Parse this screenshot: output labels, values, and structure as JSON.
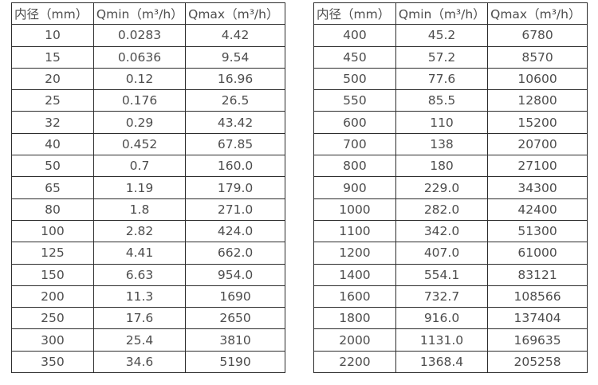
{
  "page": {
    "background_color": "#ffffff",
    "border_color": "#2d2d2d",
    "text_color": "#4d4d4d"
  },
  "tables": [
    {
      "name": "flow-table-small-diameters",
      "headers": [
        "内径（mm）",
        "Qmin（m³/h）",
        "Qmax（m³/h）"
      ],
      "rows": [
        [
          "10",
          "0.0283",
          "4.42"
        ],
        [
          "15",
          "0.0636",
          "9.54"
        ],
        [
          "20",
          "0.12",
          "16.96"
        ],
        [
          "25",
          "0.176",
          "26.5"
        ],
        [
          "32",
          "0.29",
          "43.42"
        ],
        [
          "40",
          "0.452",
          "67.85"
        ],
        [
          "50",
          "0.7",
          "160.0"
        ],
        [
          "65",
          "1.19",
          "179.0"
        ],
        [
          "80",
          "1.8",
          "271.0"
        ],
        [
          "100",
          "2.82",
          "424.0"
        ],
        [
          "125",
          "4.41",
          "662.0"
        ],
        [
          "150",
          "6.63",
          "954.0"
        ],
        [
          "200",
          "11.3",
          "1690"
        ],
        [
          "250",
          "17.6",
          "2650"
        ],
        [
          "300",
          "25.4",
          "3810"
        ],
        [
          "350",
          "34.6",
          "5190"
        ]
      ]
    },
    {
      "name": "flow-table-large-diameters",
      "headers": [
        "内径（mm）",
        "Qmin（m³/h）",
        "Qmax（m³/h）"
      ],
      "rows": [
        [
          "400",
          "45.2",
          "6780"
        ],
        [
          "450",
          "57.2",
          "8570"
        ],
        [
          "500",
          "77.6",
          "10600"
        ],
        [
          "550",
          "85.5",
          "12800"
        ],
        [
          "600",
          "110",
          "15200"
        ],
        [
          "700",
          "138",
          "20700"
        ],
        [
          "800",
          "180",
          "27100"
        ],
        [
          "900",
          "229.0",
          "34300"
        ],
        [
          "1000",
          "282.0",
          "42400"
        ],
        [
          "1100",
          "342.0",
          "51300"
        ],
        [
          "1200",
          "407.0",
          "61000"
        ],
        [
          "1400",
          "554.1",
          "83121"
        ],
        [
          "1600",
          "732.7",
          "108566"
        ],
        [
          "1800",
          "916.0",
          "137404"
        ],
        [
          "2000",
          "1131.0",
          "169635"
        ],
        [
          "2200",
          "1368.4",
          "205258"
        ]
      ]
    }
  ]
}
